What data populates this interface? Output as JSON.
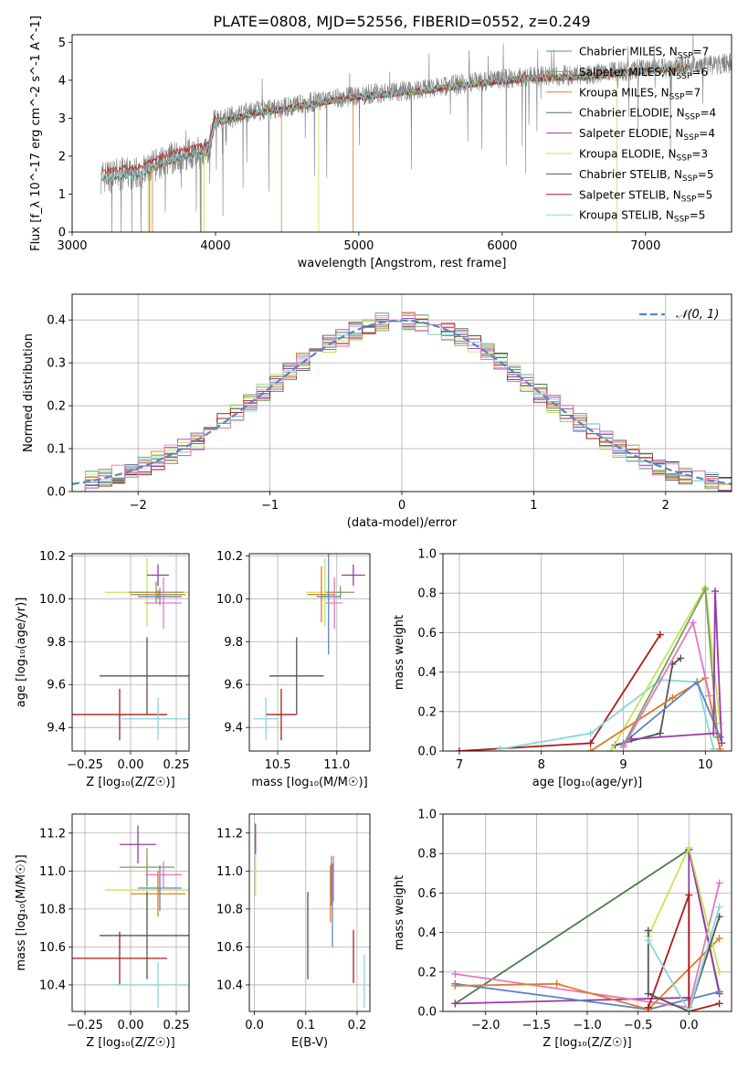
{
  "figure_title": "PLATE=0808, MJD=52556, FIBERID=0552, z=0.249",
  "colors": {
    "chabrier_miles": "#5b84c4",
    "salpeter_miles": "#7a9e5e",
    "kroupa_miles": "#e07b24",
    "chabrier_elodie": "#4a7a4a",
    "salpeter_elodie": "#9a39a9",
    "kroupa_elodie": "#c7e25a",
    "chabrier_stelib": "#555555",
    "salpeter_stelib": "#b11a1a",
    "kroupa_stelib": "#86d8d8",
    "pink": "#e377c2",
    "gaussian": "#5b84c4",
    "data": "#808080"
  },
  "chart_data": [
    {
      "id": "spectrum",
      "type": "line",
      "xlabel": "wavelength [Angstrom, rest frame]",
      "ylabel": "Flux [f_λ 10^-17 erg cm^-2 s^-1 A^-1]",
      "xlim": [
        3000,
        7600
      ],
      "ylim": [
        0,
        5.2
      ],
      "xticks": [
        "3000",
        "4000",
        "5000",
        "6000",
        "7000"
      ],
      "yticks": [
        "0",
        "1",
        "2",
        "3",
        "4",
        "5"
      ],
      "legend_position": "right",
      "legend": [
        {
          "label": "Chabrier MILES, N",
          "sub": "SSP",
          "val": "=7"
        },
        {
          "label": "Salpeter MILES, N",
          "sub": "SSP",
          "val": "=6"
        },
        {
          "label": "Kroupa MILES, N",
          "sub": "SSP",
          "val": "=7"
        },
        {
          "label": "Chabrier ELODIE, N",
          "sub": "SSP",
          "val": "=4"
        },
        {
          "label": "Salpeter ELODIE, N",
          "sub": "SSP",
          "val": "=4"
        },
        {
          "label": "Kroupa ELODIE, N",
          "sub": "SSP",
          "val": "=3"
        },
        {
          "label": "Chabrier STELIB, N",
          "sub": "SSP",
          "val": "=5"
        },
        {
          "label": "Salpeter STELIB, N",
          "sub": "SSP",
          "val": "=5"
        },
        {
          "label": "Kroupa STELIB, N",
          "sub": "SSP",
          "val": "=5"
        }
      ],
      "data_range": [
        3200,
        7600
      ],
      "anchors": [
        [
          3200,
          1.45
        ],
        [
          3500,
          1.6
        ],
        [
          3600,
          1.8
        ],
        [
          3800,
          2.05
        ],
        [
          3950,
          2.15
        ],
        [
          4000,
          2.95
        ],
        [
          4300,
          3.2
        ],
        [
          4500,
          3.3
        ],
        [
          4800,
          3.5
        ],
        [
          5100,
          3.65
        ],
        [
          5400,
          3.75
        ],
        [
          5800,
          3.95
        ],
        [
          6200,
          4.1
        ],
        [
          6600,
          4.15
        ],
        [
          7000,
          4.3
        ],
        [
          7600,
          4.45
        ]
      ]
    },
    {
      "id": "residuals",
      "type": "step",
      "xlabel": "(data-model)/error",
      "ylabel": "Normed distribution",
      "xlim": [
        -2.5,
        2.5
      ],
      "ylim": [
        0,
        0.46
      ],
      "xticks": [
        "−2",
        "−1",
        "0",
        "1",
        "2"
      ],
      "yticks": [
        "0.0",
        "0.1",
        "0.2",
        "0.3",
        "0.4"
      ],
      "legend_label": "𝒩(0, 1)",
      "legend_position": "top-right",
      "bin_width": 0.1
    },
    {
      "id": "z_age",
      "type": "scatter",
      "xlabel": "Z [log₁₀(Z/Z☉)]",
      "ylabel": "age  [log₁₀(age/yr)]",
      "xlim": [
        -0.32,
        0.32
      ],
      "ylim": [
        9.29,
        10.21
      ],
      "xticks": [
        "−0.25",
        "0.00",
        "0.25"
      ],
      "yticks": [
        "9.4",
        "9.6",
        "9.8",
        "10.0",
        "10.2"
      ],
      "points": [
        {
          "x": 0.09,
          "y": 10.03,
          "xerr": 0.23,
          "yerr": 0.16,
          "c": "kroupa_elodie"
        },
        {
          "x": 0.15,
          "y": 10.11,
          "xerr": 0.06,
          "yerr": 0.05,
          "c": "salpeter_elodie"
        },
        {
          "x": 0.14,
          "y": 10.03,
          "xerr": 0.15,
          "yerr": 0.05,
          "c": "salpeter_miles"
        },
        {
          "x": 0.15,
          "y": 10.02,
          "xerr": 0.15,
          "yerr": 0.02,
          "c": "kroupa_miles"
        },
        {
          "x": 0.16,
          "y": 10.01,
          "xerr": 0.12,
          "yerr": 0.04,
          "c": "chabrier_miles"
        },
        {
          "x": 0.18,
          "y": 9.98,
          "xerr": 0.1,
          "yerr": 0.12,
          "c": "pink"
        },
        {
          "x": 0.09,
          "y": 9.64,
          "xerr": 0.26,
          "yerr": 0.18,
          "c": "chabrier_stelib"
        },
        {
          "x": -0.06,
          "y": 9.46,
          "xerr": 0.26,
          "yerr": 0.12,
          "c": "salpeter_stelib"
        },
        {
          "x": 0.15,
          "y": 9.44,
          "xerr": 0.2,
          "yerr": 0.1,
          "c": "kroupa_stelib"
        }
      ]
    },
    {
      "id": "mass_age",
      "type": "scatter",
      "xlabel": "mass [log₁₀(M/M☉)]",
      "ylabel": "",
      "xlim": [
        10.26,
        11.28
      ],
      "ylim": [
        9.29,
        10.21
      ],
      "xticks": [
        "10.5",
        "11.0"
      ],
      "yticks": [
        "9.4",
        "9.6",
        "9.8",
        "10.0",
        "10.2"
      ],
      "points": [
        {
          "x": 10.9,
          "y": 10.03,
          "xerr": 0.16,
          "yerr": 0.16,
          "c": "kroupa_elodie"
        },
        {
          "x": 11.14,
          "y": 10.11,
          "xerr": 0.1,
          "yerr": 0.05,
          "c": "salpeter_elodie"
        },
        {
          "x": 11.03,
          "y": 10.03,
          "xerr": 0.12,
          "yerr": 0.03,
          "c": "salpeter_miles"
        },
        {
          "x": 10.87,
          "y": 10.02,
          "xerr": 0.12,
          "yerr": 0.13,
          "c": "kroupa_miles"
        },
        {
          "x": 10.93,
          "y": 10.01,
          "xerr": 0.1,
          "yerr": 0.27,
          "c": "chabrier_miles"
        },
        {
          "x": 10.98,
          "y": 9.98,
          "xerr": 0.07,
          "yerr": 0.12,
          "c": "pink"
        },
        {
          "x": 10.66,
          "y": 9.64,
          "xerr": 0.23,
          "yerr": 0.18,
          "c": "chabrier_stelib"
        },
        {
          "x": 10.53,
          "y": 9.46,
          "xerr": 0.13,
          "yerr": 0.12,
          "c": "salpeter_stelib"
        },
        {
          "x": 10.4,
          "y": 9.44,
          "xerr": 0.11,
          "yerr": 0.1,
          "c": "kroupa_stelib"
        }
      ]
    },
    {
      "id": "age_weight",
      "type": "line",
      "xlabel": "age  [log₁₀(age/yr)]",
      "ylabel": "mass weight",
      "xlim": [
        6.8,
        10.32
      ],
      "ylim": [
        0,
        1.0
      ],
      "xticks": [
        "7",
        "8",
        "9",
        "10"
      ],
      "yticks": [
        "0.0",
        "0.2",
        "0.4",
        "0.6",
        "0.8",
        "1.0"
      ],
      "series": [
        {
          "c": "salpeter_stelib",
          "points": [
            [
              7.0,
              0.0
            ],
            [
              8.6,
              0.04
            ],
            [
              9.45,
              0.59
            ]
          ]
        },
        {
          "c": "kroupa_stelib",
          "points": [
            [
              7.5,
              0.01
            ],
            [
              8.6,
              0.09
            ],
            [
              9.45,
              0.36
            ],
            [
              9.9,
              0.35
            ],
            [
              10.1,
              0.01
            ]
          ]
        },
        {
          "c": "chabrier_stelib",
          "points": [
            [
              8.9,
              0.03
            ],
            [
              9.45,
              0.09
            ],
            [
              9.6,
              0.44
            ],
            [
              9.7,
              0.47
            ]
          ]
        },
        {
          "c": "kroupa_elodie",
          "points": [
            [
              8.85,
              0.0
            ],
            [
              10.0,
              0.83
            ],
            [
              10.18,
              0.14
            ]
          ]
        },
        {
          "c": "salpeter_miles",
          "points": [
            [
              9.0,
              0.03
            ],
            [
              10.0,
              0.82
            ],
            [
              10.15,
              0.07
            ]
          ]
        },
        {
          "c": "kroupa_miles",
          "points": [
            [
              8.6,
              0.0
            ],
            [
              9.6,
              0.27
            ],
            [
              10.0,
              0.37
            ],
            [
              10.18,
              0.01
            ]
          ]
        },
        {
          "c": "chabrier_miles",
          "points": [
            [
              9.0,
              0.04
            ],
            [
              9.9,
              0.35
            ],
            [
              10.18,
              0.07
            ]
          ]
        },
        {
          "c": "pink",
          "points": [
            [
              9.0,
              0.02
            ],
            [
              9.85,
              0.65
            ],
            [
              10.05,
              0.28
            ]
          ]
        },
        {
          "c": "salpeter_elodie",
          "points": [
            [
              9.1,
              0.06
            ],
            [
              10.1,
              0.09
            ],
            [
              10.12,
              0.81
            ],
            [
              10.2,
              0.04
            ]
          ]
        }
      ]
    },
    {
      "id": "z_mass",
      "type": "scatter",
      "xlabel": "Z [log₁₀(Z/Z☉)]",
      "ylabel": "mass [log₁₀(M/M☉)]",
      "xlim": [
        -0.32,
        0.32
      ],
      "ylim": [
        10.26,
        11.3
      ],
      "xticks": [
        "−0.25",
        "0.00",
        "0.25"
      ],
      "yticks": [
        "10.4",
        "10.6",
        "10.8",
        "11.0",
        "11.2"
      ],
      "points": [
        {
          "x": 0.09,
          "y": 10.9,
          "xerr": 0.23,
          "yerr": 0.15,
          "c": "kroupa_elodie"
        },
        {
          "x": 0.04,
          "y": 11.14,
          "xerr": 0.1,
          "yerr": 0.1,
          "c": "salpeter_elodie"
        },
        {
          "x": 0.09,
          "y": 11.02,
          "xerr": 0.15,
          "yerr": 0.1,
          "c": "salpeter_miles"
        },
        {
          "x": 0.15,
          "y": 10.88,
          "xerr": 0.15,
          "yerr": 0.12,
          "c": "kroupa_miles"
        },
        {
          "x": 0.16,
          "y": 10.91,
          "xerr": 0.12,
          "yerr": 0.12,
          "c": "chabrier_miles"
        },
        {
          "x": 0.18,
          "y": 10.98,
          "xerr": 0.1,
          "yerr": 0.07,
          "c": "pink"
        },
        {
          "x": 0.09,
          "y": 10.66,
          "xerr": 0.26,
          "yerr": 0.23,
          "c": "chabrier_stelib"
        },
        {
          "x": -0.06,
          "y": 10.54,
          "xerr": 0.26,
          "yerr": 0.14,
          "c": "salpeter_stelib"
        },
        {
          "x": 0.15,
          "y": 10.4,
          "xerr": 0.26,
          "yerr": 0.12,
          "c": "kroupa_stelib"
        }
      ]
    },
    {
      "id": "ebv_mass",
      "type": "scatter",
      "xlabel": "E(B-V)",
      "ylabel": "",
      "xlim": [
        -0.01,
        0.225
      ],
      "ylim": [
        10.26,
        11.3
      ],
      "xticks": [
        "0.0",
        "0.1",
        "0.2"
      ],
      "yticks": [
        "10.4",
        "10.6",
        "10.8",
        "11.0",
        "11.2"
      ],
      "points": [
        {
          "x": 0.002,
          "y": 11.02,
          "yerr": 0.15,
          "c": "kroupa_elodie"
        },
        {
          "x": 0.002,
          "y": 11.17,
          "yerr": 0.08,
          "c": "salpeter_elodie"
        },
        {
          "x": 0.15,
          "y": 10.95,
          "yerr": 0.13,
          "c": "salpeter_miles"
        },
        {
          "x": 0.148,
          "y": 10.88,
          "yerr": 0.15,
          "c": "kroupa_miles"
        },
        {
          "x": 0.152,
          "y": 10.82,
          "yerr": 0.22,
          "c": "chabrier_miles"
        },
        {
          "x": 0.154,
          "y": 10.96,
          "yerr": 0.12,
          "c": "pink"
        },
        {
          "x": 0.104,
          "y": 10.66,
          "yerr": 0.23,
          "c": "chabrier_stelib"
        },
        {
          "x": 0.193,
          "y": 10.55,
          "yerr": 0.14,
          "c": "salpeter_stelib"
        },
        {
          "x": 0.214,
          "y": 10.42,
          "yerr": 0.14,
          "c": "kroupa_stelib"
        }
      ]
    },
    {
      "id": "z_weight",
      "type": "line",
      "xlabel": "Z [log₁₀(Z/Z☉)]",
      "ylabel": "mass weight",
      "xlim": [
        -2.42,
        0.42
      ],
      "ylim": [
        0,
        1.0
      ],
      "xticks": [
        "−2.0",
        "−1.5",
        "−1.0",
        "−0.5",
        "0.0"
      ],
      "yticks": [
        "0.0",
        "0.2",
        "0.4",
        "0.6",
        "0.8",
        "1.0"
      ],
      "series": [
        {
          "c": "chabrier_elodie",
          "points": [
            [
              -2.3,
              0.04
            ],
            [
              0.0,
              0.82
            ],
            [
              0.3,
              0.1
            ]
          ]
        },
        {
          "c": "salpeter_elodie",
          "points": [
            [
              -2.3,
              0.04
            ],
            [
              0.0,
              0.07
            ],
            [
              0.0,
              0.82
            ],
            [
              0.3,
              0.09
            ]
          ]
        },
        {
          "c": "chabrier_miles",
          "points": [
            [
              -2.3,
              0.14
            ],
            [
              -0.4,
              0.01
            ],
            [
              0.3,
              0.1
            ]
          ]
        },
        {
          "c": "pink",
          "points": [
            [
              -2.3,
              0.19
            ],
            [
              0.0,
              0.02
            ],
            [
              0.3,
              0.65
            ]
          ]
        },
        {
          "c": "kroupa_miles",
          "points": [
            [
              -2.3,
              0.13
            ],
            [
              -1.3,
              0.14
            ],
            [
              -0.4,
              0.01
            ],
            [
              0.3,
              0.37
            ]
          ]
        },
        {
          "c": "kroupa_elodie",
          "points": [
            [
              -0.4,
              0.38
            ],
            [
              0.0,
              0.83
            ],
            [
              0.3,
              0.2
            ]
          ]
        },
        {
          "c": "salpeter_stelib",
          "points": [
            [
              -0.4,
              0.02
            ],
            [
              0.0,
              0.59
            ],
            [
              0.0,
              0.0
            ],
            [
              0.3,
              0.04
            ]
          ]
        },
        {
          "c": "chabrier_stelib",
          "points": [
            [
              -0.4,
              0.41
            ],
            [
              -0.4,
              0.09
            ],
            [
              0.0,
              0.0
            ],
            [
              0.3,
              0.48
            ]
          ]
        },
        {
          "c": "kroupa_stelib",
          "points": [
            [
              -0.4,
              0.36
            ],
            [
              0.0,
              0.0
            ],
            [
              0.3,
              0.53
            ]
          ]
        }
      ]
    }
  ]
}
